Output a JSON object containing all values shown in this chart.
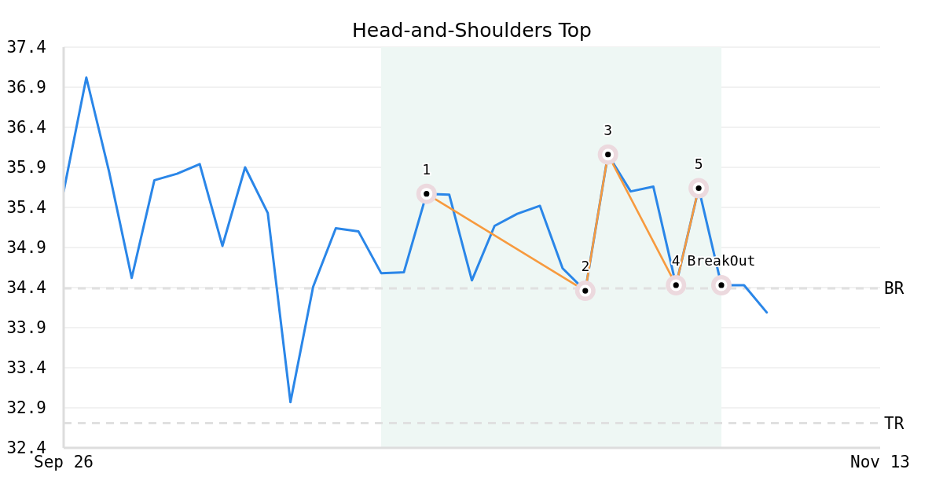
{
  "chart_data": {
    "type": "line",
    "title": "Head-and-Shoulders Top",
    "categories": [
      "Sep 26",
      null,
      null,
      null,
      null,
      null,
      null,
      null,
      null,
      null,
      null,
      null,
      null,
      null,
      null,
      null,
      null,
      null,
      null,
      null,
      null,
      null,
      null,
      null,
      null,
      null,
      null,
      null,
      null,
      null,
      null,
      null,
      null,
      null,
      null,
      null,
      "Nov 13"
    ],
    "ylim": [
      32.4,
      37.4
    ],
    "yticks": [
      32.4,
      32.9,
      33.4,
      33.9,
      34.4,
      34.9,
      35.4,
      35.9,
      36.4,
      36.9,
      37.4
    ],
    "series": [
      {
        "color": "#2a86e8",
        "values": [
          35.6,
          37.02,
          35.85,
          34.52,
          35.74,
          35.82,
          35.94,
          34.92,
          35.9,
          35.33,
          32.97,
          34.41,
          35.14,
          35.1,
          34.58,
          34.59,
          35.57,
          35.56,
          34.49,
          35.17,
          35.32,
          35.42,
          34.64,
          34.36,
          36.06,
          35.6,
          35.66,
          34.43,
          35.64,
          34.43,
          34.43,
          34.09,
          null,
          null,
          null,
          null,
          null
        ]
      },
      {
        "type": "line",
        "color": "#f79a3e",
        "marker": "circle",
        "values": [
          null,
          null,
          null,
          null,
          null,
          null,
          null,
          null,
          null,
          null,
          null,
          null,
          null,
          null,
          null,
          null,
          35.57,
          null,
          null,
          null,
          null,
          null,
          null,
          34.36,
          36.06,
          null,
          null,
          34.43,
          35.64,
          null,
          null,
          null,
          null,
          null,
          null,
          null,
          null
        ]
      },
      {
        "type": "scatter",
        "color": "#000000",
        "marker": "circle",
        "values": [
          null,
          null,
          null,
          null,
          null,
          null,
          null,
          null,
          null,
          null,
          null,
          null,
          null,
          null,
          null,
          null,
          null,
          null,
          null,
          null,
          null,
          null,
          null,
          null,
          null,
          null,
          null,
          null,
          null,
          34.43,
          null,
          null,
          null,
          null,
          null,
          null,
          null
        ]
      }
    ],
    "ref_lines": [
      {
        "axis": "y",
        "value": 34.39,
        "label": "BR",
        "color": "#e0e0e0",
        "line_style": "dashed"
      },
      {
        "axis": "y",
        "value": 32.71,
        "label": "TR",
        "color": "#e0e0e0",
        "line_style": "dashed"
      }
    ],
    "annotations": [
      {
        "text": "1",
        "y": 35.57
      },
      {
        "text": "2",
        "y": 34.36
      },
      {
        "text": "3",
        "y": 36.06
      },
      {
        "text": "4",
        "y": 34.43
      },
      {
        "text": "5",
        "y": 35.64
      },
      {
        "text": "BreakOut",
        "y": 34.43
      }
    ],
    "grid": "y",
    "line_style": "solid"
  }
}
